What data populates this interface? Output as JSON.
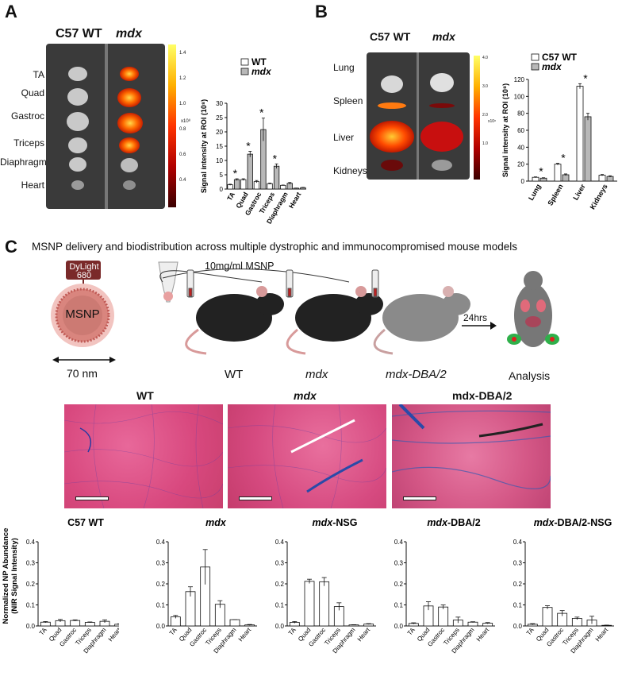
{
  "panels": {
    "a": {
      "letter": "A",
      "strain_wt": "C57 WT",
      "strain_mdx": "mdx",
      "tissues": [
        "TA",
        "Quad",
        "Gastroc",
        "Triceps",
        "Diaphragm",
        "Heart"
      ],
      "colorbar_ticks": [
        "1.4",
        "1.2",
        "1.0",
        "0.8",
        "0.6",
        "0.4"
      ],
      "colorbar_unit": "x10⁸"
    },
    "b": {
      "letter": "B",
      "strain_wt": "C57 WT",
      "strain_mdx": "mdx",
      "organs": [
        "Lung",
        "Spleen",
        "Liver",
        "Kidneys"
      ],
      "colorbar_ticks": [
        "4.0",
        "3.0",
        "2.0",
        "1.0"
      ],
      "colorbar_unit": "x10⁸"
    },
    "c": {
      "letter": "C",
      "title": "MSNP delivery and biodistribution across multiple dystrophic and immunocompromised mouse models",
      "dye_label_1": "DyLight",
      "dye_label_2": "680",
      "particle_label": "MSNP",
      "size_label": "70 nm",
      "dose_label": "10mg/ml MSNP",
      "mouse_labels": [
        "WT",
        "mdx",
        "mdx-DBA/2"
      ],
      "time_label": "24hrs",
      "analysis_label": "Analysis",
      "histology_titles": [
        "WT",
        "mdx",
        "mdx-DBA/2"
      ]
    }
  },
  "chart_data": [
    {
      "type": "bar",
      "title": "",
      "categories": [
        "TA",
        "Quad",
        "Gastroc",
        "Triceps",
        "Diaphragm",
        "Heart"
      ],
      "series": [
        {
          "name": "WT",
          "values": [
            1.5,
            3.3,
            2.6,
            1.9,
            1.3,
            0.3
          ],
          "errors": [
            0.2,
            0.3,
            0.4,
            0.2,
            0.1,
            0.05
          ]
        },
        {
          "name": "mdx",
          "values": [
            3.3,
            12.2,
            20.8,
            8.0,
            2.0,
            0.5
          ],
          "errors": [
            0.3,
            1.0,
            4.0,
            0.8,
            0.3,
            0.1
          ]
        }
      ],
      "significant": [
        "TA",
        "Quad",
        "Gastroc",
        "Triceps"
      ],
      "ylabel": "Signal intensity at ROI (10⁸)",
      "yticks": [
        0,
        5,
        10,
        15,
        20,
        25,
        30
      ],
      "ylim": [
        0,
        30
      ],
      "legend": "top-right"
    },
    {
      "type": "bar",
      "title": "",
      "categories": [
        "Lung",
        "Spleen",
        "Liver",
        "Kidneys"
      ],
      "series": [
        {
          "name": "C57 WT",
          "values": [
            4.5,
            20.0,
            112.0,
            7.0
          ],
          "errors": [
            0.5,
            1.0,
            3.0,
            0.8
          ]
        },
        {
          "name": "mdx",
          "values": [
            3.5,
            7.5,
            76.0,
            5.5
          ],
          "errors": [
            0.5,
            1.0,
            4.0,
            0.8
          ]
        }
      ],
      "significant": [
        "Lung",
        "Spleen",
        "Liver"
      ],
      "ylabel": "Signal intensity at ROI (10⁸)",
      "yticks": [
        0,
        20,
        40,
        60,
        80,
        100,
        120
      ],
      "ylim": [
        0,
        120
      ],
      "legend": "top-right"
    },
    {
      "type": "bar",
      "title": "C57 WT",
      "categories": [
        "TA",
        "Quad",
        "Gastroc",
        "Triceps",
        "Diaphragm",
        "Heart"
      ],
      "values": [
        0.018,
        0.025,
        0.026,
        0.017,
        0.022,
        0.008
      ],
      "errors": [
        0.003,
        0.006,
        0.003,
        0.002,
        0.007,
        0.002
      ],
      "ylabel": "Normalized NP Abundance (NIR Signal Intensity)",
      "yticks": [
        0.0,
        0.1,
        0.2,
        0.3,
        0.4
      ],
      "ylim": [
        0,
        0.4
      ]
    },
    {
      "type": "bar",
      "title": "mdx",
      "categories": [
        "TA",
        "Quad",
        "Gastroc",
        "Triceps",
        "Diaphragm",
        "Heart"
      ],
      "values": [
        0.043,
        0.163,
        0.28,
        0.103,
        0.03,
        0.005
      ],
      "errors": [
        0.007,
        0.023,
        0.083,
        0.017,
        0.0,
        0.002
      ],
      "ylabel": "",
      "yticks": [
        0.0,
        0.1,
        0.2,
        0.3,
        0.4
      ],
      "ylim": [
        0,
        0.4
      ]
    },
    {
      "type": "bar",
      "title": "mdx-NSG",
      "categories": [
        "TA",
        "Quad",
        "Gastroc",
        "Triceps",
        "Diaphragm",
        "Heart"
      ],
      "values": [
        0.017,
        0.212,
        0.21,
        0.092,
        0.005,
        0.009
      ],
      "errors": [
        0.004,
        0.01,
        0.02,
        0.018,
        0.001,
        0.002
      ],
      "ylabel": "",
      "yticks": [
        0.0,
        0.1,
        0.2,
        0.3,
        0.4
      ],
      "ylim": [
        0,
        0.4
      ]
    },
    {
      "type": "bar",
      "title": "mdx-DBA/2",
      "categories": [
        "TA",
        "Quad",
        "Gastroc",
        "Triceps",
        "Diaphragm",
        "Heart"
      ],
      "values": [
        0.012,
        0.095,
        0.09,
        0.028,
        0.018,
        0.013
      ],
      "errors": [
        0.003,
        0.02,
        0.01,
        0.014,
        0.002,
        0.003
      ],
      "ylabel": "",
      "yticks": [
        0.0,
        0.1,
        0.2,
        0.3,
        0.4
      ],
      "ylim": [
        0,
        0.4
      ]
    },
    {
      "type": "bar",
      "title": "mdx-DBA/2-NSG",
      "categories": [
        "TA",
        "Quad",
        "Gastroc",
        "Triceps",
        "Diaphragm",
        "Heart"
      ],
      "values": [
        0.008,
        0.088,
        0.06,
        0.036,
        0.028,
        0.003
      ],
      "errors": [
        0.003,
        0.008,
        0.013,
        0.006,
        0.018,
        0.001
      ],
      "ylabel": "",
      "yticks": [
        0.0,
        0.1,
        0.2,
        0.3,
        0.4
      ],
      "ylim": [
        0,
        0.4
      ]
    }
  ]
}
